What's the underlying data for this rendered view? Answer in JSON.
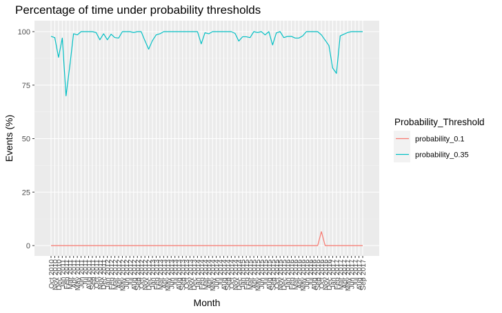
{
  "chart_data": {
    "type": "line",
    "title": "Percentage of time under probability thresholds",
    "xlabel": "Month",
    "ylabel": "Events (%)",
    "ylim": [
      0,
      100
    ],
    "y_ticks": [
      0,
      25,
      50,
      75,
      100
    ],
    "grid": true,
    "legend_placement": "right",
    "legend_title": "Probability_Threshold",
    "x_categories": [
      "Oct 2010",
      "Nov 2010",
      "Dec 2010",
      "Jan 2011",
      "Feb 2011",
      "Mar 2011",
      "Apr 2011",
      "May 2011",
      "Jun 2011",
      "Jul 2011",
      "Aug 2011",
      "Sep 2011",
      "Oct 2011",
      "Nov 2011",
      "Dec 2011",
      "Jan 2012",
      "Feb 2012",
      "Mar 2012",
      "Apr 2012",
      "May 2012",
      "Jun 2012",
      "Jul 2012",
      "Aug 2012",
      "Sep 2012",
      "Oct 2012",
      "Nov 2012",
      "Dec 2012",
      "Jan 2013",
      "Feb 2013",
      "Mar 2013",
      "Apr 2013",
      "May 2013",
      "Jun 2013",
      "Jul 2013",
      "Aug 2013",
      "Sep 2013",
      "Oct 2013",
      "Nov 2013",
      "Dec 2013",
      "Jan 2014",
      "Feb 2014",
      "Mar 2014",
      "Apr 2014",
      "May 2014",
      "Jun 2014",
      "Jul 2014",
      "Aug 2014",
      "Sep 2014",
      "Oct 2014",
      "Nov 2014",
      "Dec 2014",
      "Jan 2015",
      "Feb 2015",
      "Mar 2015",
      "Apr 2015",
      "May 2015",
      "Jun 2015",
      "Jul 2015",
      "Aug 2015",
      "Sep 2015",
      "Oct 2015",
      "Nov 2015",
      "Dec 2015",
      "Jan 2016",
      "Feb 2016",
      "Mar 2016",
      "Apr 2016",
      "May 2016",
      "Jun 2016",
      "Jul 2016",
      "Aug 2016",
      "Sep 2016",
      "Oct 2016",
      "Nov 2016",
      "Dec 2016",
      "Jan 2017",
      "Feb 2017",
      "Mar 2017",
      "Apr 2017",
      "May 2017",
      "Jun 2017",
      "Jul 2017",
      "Aug 2017",
      "Sep 2017"
    ],
    "series": [
      {
        "name": "probability_0.1",
        "color": "#F8766D",
        "values": [
          0,
          0,
          0,
          0,
          0,
          0,
          0,
          0,
          0,
          0,
          0,
          0,
          0,
          0,
          0,
          0,
          0,
          0,
          0,
          0,
          0,
          0,
          0,
          0,
          0,
          0,
          0,
          0,
          0,
          0,
          0,
          0,
          0,
          0,
          0,
          0,
          0,
          0,
          0,
          0,
          0,
          0,
          0,
          0,
          0,
          0,
          0,
          0,
          0,
          0,
          0,
          0,
          0,
          0,
          0,
          0,
          0,
          0,
          0,
          0,
          0,
          0,
          0,
          0,
          0,
          0,
          0,
          0,
          0,
          0,
          0,
          0,
          6.5,
          0,
          0,
          0,
          0,
          0,
          0,
          0,
          0,
          0,
          0,
          0
        ]
      },
      {
        "name": "probability_0.35",
        "color": "#00BFC4",
        "values": [
          97.8,
          97.2,
          88,
          97,
          70,
          84,
          99,
          98.5,
          100,
          100,
          100,
          100,
          99.6,
          96.2,
          99,
          96.2,
          98.8,
          97.2,
          97,
          100,
          100,
          100,
          99.6,
          100,
          100,
          95.8,
          91.8,
          95.8,
          98.5,
          99,
          100,
          100,
          100,
          100,
          100,
          100,
          100,
          100,
          100,
          100,
          94.3,
          99.5,
          99,
          100,
          100,
          100,
          100,
          100,
          100,
          99.2,
          95.6,
          97.6,
          97.6,
          97.2,
          100,
          99.6,
          100,
          98.5,
          100,
          93.8,
          99.4,
          100,
          97.2,
          97.8,
          97.8,
          97,
          97,
          98,
          100,
          100,
          100,
          100,
          98.5,
          96,
          93.5,
          83,
          80.5,
          98,
          98.8,
          99.6,
          100,
          100,
          100,
          100
        ]
      }
    ]
  }
}
